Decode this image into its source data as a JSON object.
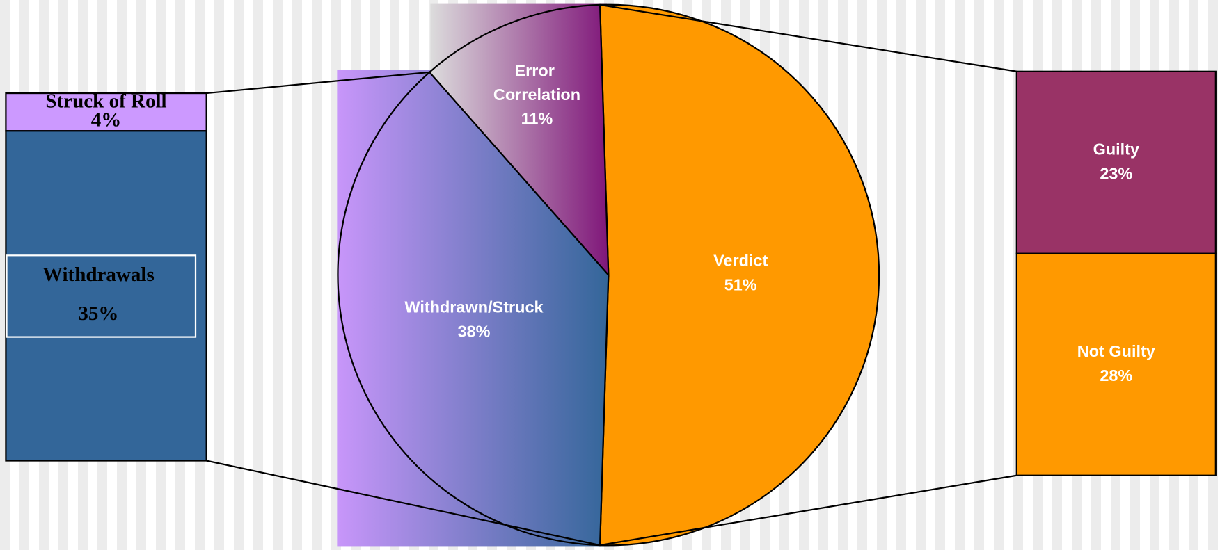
{
  "chart_data": {
    "type": "pie",
    "categories": [
      "Verdict",
      "Withdrawn/Struck",
      "Error Correlation"
    ],
    "values": [
      51,
      38,
      11
    ],
    "value_labels": [
      "51%",
      "38%",
      "11%"
    ],
    "colors": [
      "#ff9900",
      "#336699",
      "#80187a"
    ],
    "breakouts": [
      {
        "categories": [
          "Struck of Roll",
          "Withdrawals"
        ],
        "values": [
          4,
          35
        ],
        "value_labels": [
          "4%",
          "35%"
        ],
        "colors": [
          "#cc99ff",
          "#336699"
        ]
      },
      {
        "categories": [
          "Guilty",
          "Not Guilty"
        ],
        "values": [
          23,
          28
        ],
        "value_labels": [
          "23%",
          "28%"
        ],
        "colors": [
          "#993366",
          "#ff9900"
        ]
      }
    ]
  }
}
